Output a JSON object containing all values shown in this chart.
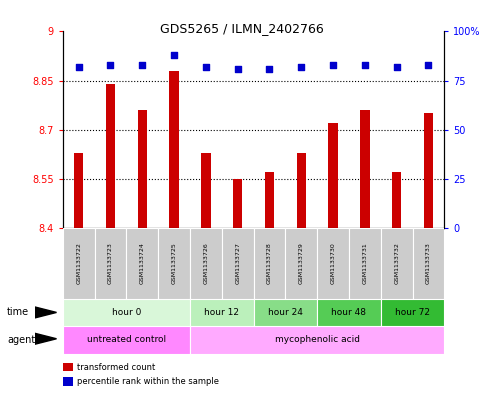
{
  "title": "GDS5265 / ILMN_2402766",
  "samples": [
    "GSM1133722",
    "GSM1133723",
    "GSM1133724",
    "GSM1133725",
    "GSM1133726",
    "GSM1133727",
    "GSM1133728",
    "GSM1133729",
    "GSM1133730",
    "GSM1133731",
    "GSM1133732",
    "GSM1133733"
  ],
  "bar_values": [
    8.63,
    8.84,
    8.76,
    8.88,
    8.63,
    8.55,
    8.57,
    8.63,
    8.72,
    8.76,
    8.57,
    8.75
  ],
  "percentile_values": [
    82,
    83,
    83,
    88,
    82,
    81,
    81,
    82,
    83,
    83,
    82,
    83
  ],
  "bar_color": "#cc0000",
  "percentile_color": "#0000cc",
  "ylim_left": [
    8.4,
    9.0
  ],
  "ylim_right": [
    0,
    100
  ],
  "yticks_left": [
    8.4,
    8.55,
    8.7,
    8.85,
    9.0
  ],
  "ytick_labels_left": [
    "8.4",
    "8.55",
    "8.7",
    "8.85",
    "9"
  ],
  "yticks_right": [
    0,
    25,
    50,
    75,
    100
  ],
  "ytick_labels_right": [
    "0",
    "25",
    "50",
    "75",
    "100%"
  ],
  "hlines": [
    8.55,
    8.7,
    8.85
  ],
  "time_groups": [
    {
      "label": "hour 0",
      "start": 0,
      "end": 4,
      "color": "#d9f7d9"
    },
    {
      "label": "hour 12",
      "start": 4,
      "end": 6,
      "color": "#bbf0bb"
    },
    {
      "label": "hour 24",
      "start": 6,
      "end": 8,
      "color": "#88dd88"
    },
    {
      "label": "hour 48",
      "start": 8,
      "end": 10,
      "color": "#55cc55"
    },
    {
      "label": "hour 72",
      "start": 10,
      "end": 12,
      "color": "#33bb33"
    }
  ],
  "agent_groups": [
    {
      "label": "untreated control",
      "start": 0,
      "end": 4,
      "color": "#ff88ff"
    },
    {
      "label": "mycophenolic acid",
      "start": 4,
      "end": 12,
      "color": "#ffaaff"
    }
  ],
  "legend_items": [
    {
      "color": "#cc0000",
      "label": "transformed count",
      "marker": "square"
    },
    {
      "color": "#0000cc",
      "label": "percentile rank within the sample",
      "marker": "square"
    }
  ],
  "bar_width": 0.3,
  "background_color": "#ffffff",
  "plot_bg": "#ffffff",
  "sample_bg": "#cccccc",
  "baseline": 8.4
}
